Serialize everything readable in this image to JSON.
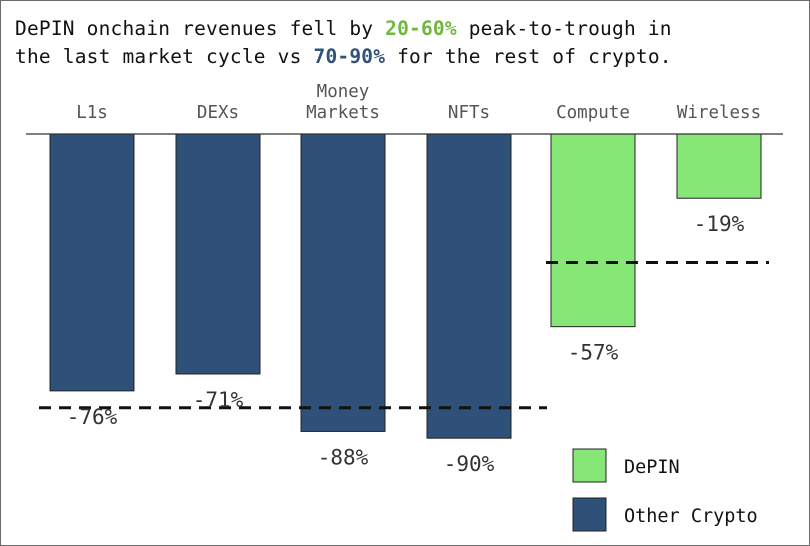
{
  "title": {
    "part1": "DePIN onchain revenues fell by ",
    "highlight1": "20-60%",
    "part2": " peak-to-trough in",
    "part3": "the last market cycle vs ",
    "highlight2": "70-90%",
    "part4": " for the rest of crypto."
  },
  "colors": {
    "depin": "#86e676",
    "other_crypto": "#2f5179",
    "depin_text": "#71b63e",
    "other_text": "#33527a"
  },
  "chart_data": {
    "type": "bar",
    "categories": [
      "L1s",
      "DEXs",
      "Money Markets",
      "NFTs",
      "Compute",
      "Wireless"
    ],
    "category_labels": [
      [
        "L1s"
      ],
      [
        "DEXs"
      ],
      [
        "Money",
        "Markets"
      ],
      [
        "NFTs"
      ],
      [
        "Compute"
      ],
      [
        "Wireless"
      ]
    ],
    "values": [
      -76,
      -71,
      -88,
      -90,
      -57,
      -19
    ],
    "value_labels": [
      "-76%",
      "-71%",
      "-88%",
      "-90%",
      "-57%",
      "-19%"
    ],
    "groups": [
      "Other Crypto",
      "Other Crypto",
      "Other Crypto",
      "Other Crypto",
      "DePIN",
      "DePIN"
    ],
    "ylim": [
      -100,
      0
    ],
    "reference_lines": [
      {
        "group": "Other Crypto",
        "value": -81
      },
      {
        "group": "DePIN",
        "value": -38
      }
    ],
    "legend": {
      "placement": "bottom-right",
      "entries": [
        {
          "name": "DePIN",
          "color": "#86e676"
        },
        {
          "name": "Other Crypto",
          "color": "#2f5179"
        }
      ]
    },
    "grid": false
  }
}
